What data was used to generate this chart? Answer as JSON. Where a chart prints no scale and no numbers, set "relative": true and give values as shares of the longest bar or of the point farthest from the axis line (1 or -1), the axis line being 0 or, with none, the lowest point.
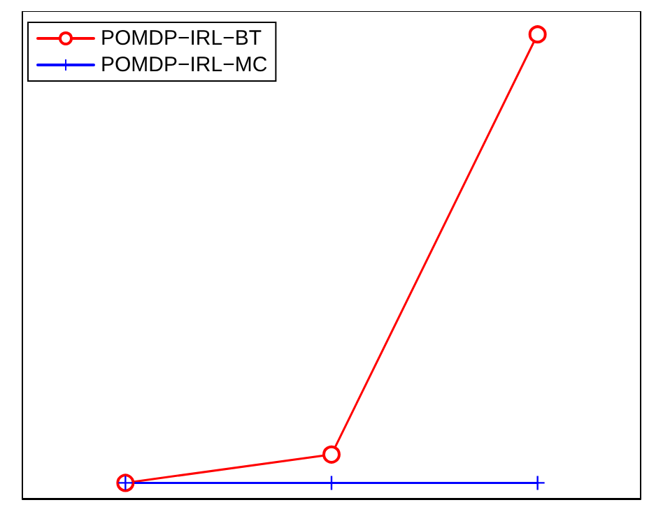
{
  "chart_data": {
    "type": "line",
    "relative": true,
    "categories": [
      null,
      null,
      null
    ],
    "series": [
      {
        "name": "POMDP−IRL−BT",
        "color": "#ff0000",
        "marker": "circle",
        "values": [
          0.034,
          0.095,
          1
        ]
      },
      {
        "name": "POMDP−IRL−MC",
        "color": "#0000ff",
        "marker": "cross",
        "values": [
          0.034,
          0.034,
          0.034
        ]
      }
    ],
    "legend": "top left",
    "grid": false
  }
}
